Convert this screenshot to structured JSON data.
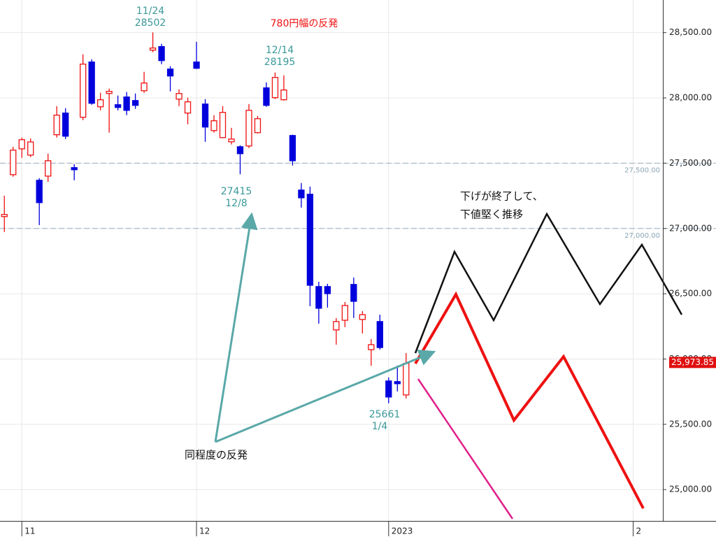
{
  "chart_data": {
    "type": "candlestick",
    "x": [
      0,
      1,
      2,
      3,
      4,
      5,
      6,
      7,
      8,
      9,
      10,
      11,
      12,
      13,
      14,
      15,
      16,
      17,
      18,
      19,
      20,
      21,
      22,
      23,
      24,
      25,
      26,
      27,
      28,
      29,
      30,
      31,
      32,
      33,
      34,
      35,
      36,
      37,
      38,
      39,
      40,
      41,
      42,
      43,
      44,
      45,
      46
    ],
    "open": [
      27091,
      27412,
      27610,
      27562,
      27369,
      27401,
      27718,
      27884,
      27466,
      27852,
      28275,
      27932,
      28034,
      27948,
      28007,
      27980,
      28055,
      28366,
      28393,
      28221,
      27991,
      27884,
      28275,
      27953,
      27750,
      27696,
      27664,
      27626,
      27632,
      27734,
      28077,
      28002,
      27986,
      27712,
      27294,
      27262,
      26555,
      26555,
      26223,
      26297,
      26571,
      26303,
      26072,
      26287,
      25832,
      25827,
      25725
    ],
    "close": [
      27107,
      27600,
      27680,
      27663,
      27198,
      27519,
      27868,
      27707,
      27450,
      28259,
      27959,
      27986,
      28050,
      27927,
      27905,
      27943,
      28114,
      28382,
      28286,
      28168,
      28034,
      27970,
      28227,
      27777,
      27825,
      27889,
      27685,
      27573,
      27905,
      27841,
      27943,
      28157,
      28061,
      27519,
      27235,
      26565,
      26389,
      26501,
      26287,
      26410,
      26442,
      26340,
      26110,
      26088,
      25709,
      25811,
      25966
    ],
    "high": [
      27251,
      27626,
      27696,
      27690,
      27385,
      27573,
      27937,
      27921,
      27493,
      28334,
      28296,
      28039,
      28071,
      28018,
      28045,
      28034,
      28200,
      28502,
      28414,
      28243,
      28066,
      28002,
      28430,
      27991,
      27868,
      27937,
      27771,
      27637,
      27953,
      27862,
      28119,
      28195,
      28173,
      27718,
      27348,
      27321,
      26592,
      26576,
      26314,
      26437,
      26624,
      26367,
      26153,
      26340,
      25859,
      25950,
      26046
    ],
    "low": [
      26973,
      27396,
      27541,
      27546,
      27026,
      27358,
      27696,
      27685,
      27369,
      27830,
      27948,
      27905,
      27734,
      27905,
      27868,
      27916,
      28039,
      28350,
      28259,
      28050,
      27937,
      27798,
      28221,
      27664,
      27734,
      27691,
      27643,
      27415,
      27616,
      27728,
      27932,
      27991,
      27980,
      27482,
      27160,
      26405,
      26271,
      26394,
      26110,
      26244,
      26314,
      26196,
      25949,
      26072,
      25661,
      25752,
      25698
    ],
    "up_color": "#ee1111",
    "down_color": "#0000dd",
    "xlim": [
      -0.5,
      75.4
    ],
    "xticks": [
      {
        "value": 2,
        "label": "11"
      },
      {
        "value": 22,
        "label": "12"
      },
      {
        "value": 44,
        "label": "2023"
      },
      {
        "value": 72,
        "label": "2"
      }
    ],
    "ylim": [
      24760,
      28750
    ],
    "yticks": [
      {
        "value": 25000,
        "label": "25,000.00"
      },
      {
        "value": 25500,
        "label": "25,500.00"
      },
      {
        "value": 26000,
        "label": "26,000.00"
      },
      {
        "value": 26500,
        "label": "26,500.00"
      },
      {
        "value": 27000,
        "label": "27,000.00"
      },
      {
        "value": 27500,
        "label": "27,500.00"
      },
      {
        "value": 28000,
        "label": "28,000.00"
      },
      {
        "value": 28500,
        "label": "28,500.00"
      }
    ],
    "reference_lines": [
      {
        "value": 27500,
        "label": "27,500.00"
      },
      {
        "value": 27000,
        "label": "27,000.00"
      }
    ],
    "last_price": {
      "value": 25973.85,
      "label": "25,973.85"
    },
    "annotations": [
      "11/24",
      "28502",
      "780円幅の反発",
      "12/14",
      "28195",
      "27415",
      "12/8",
      "25661",
      "1/4",
      "下げが終了して、",
      "下値堅く推移",
      "同程度の反発"
    ]
  }
}
